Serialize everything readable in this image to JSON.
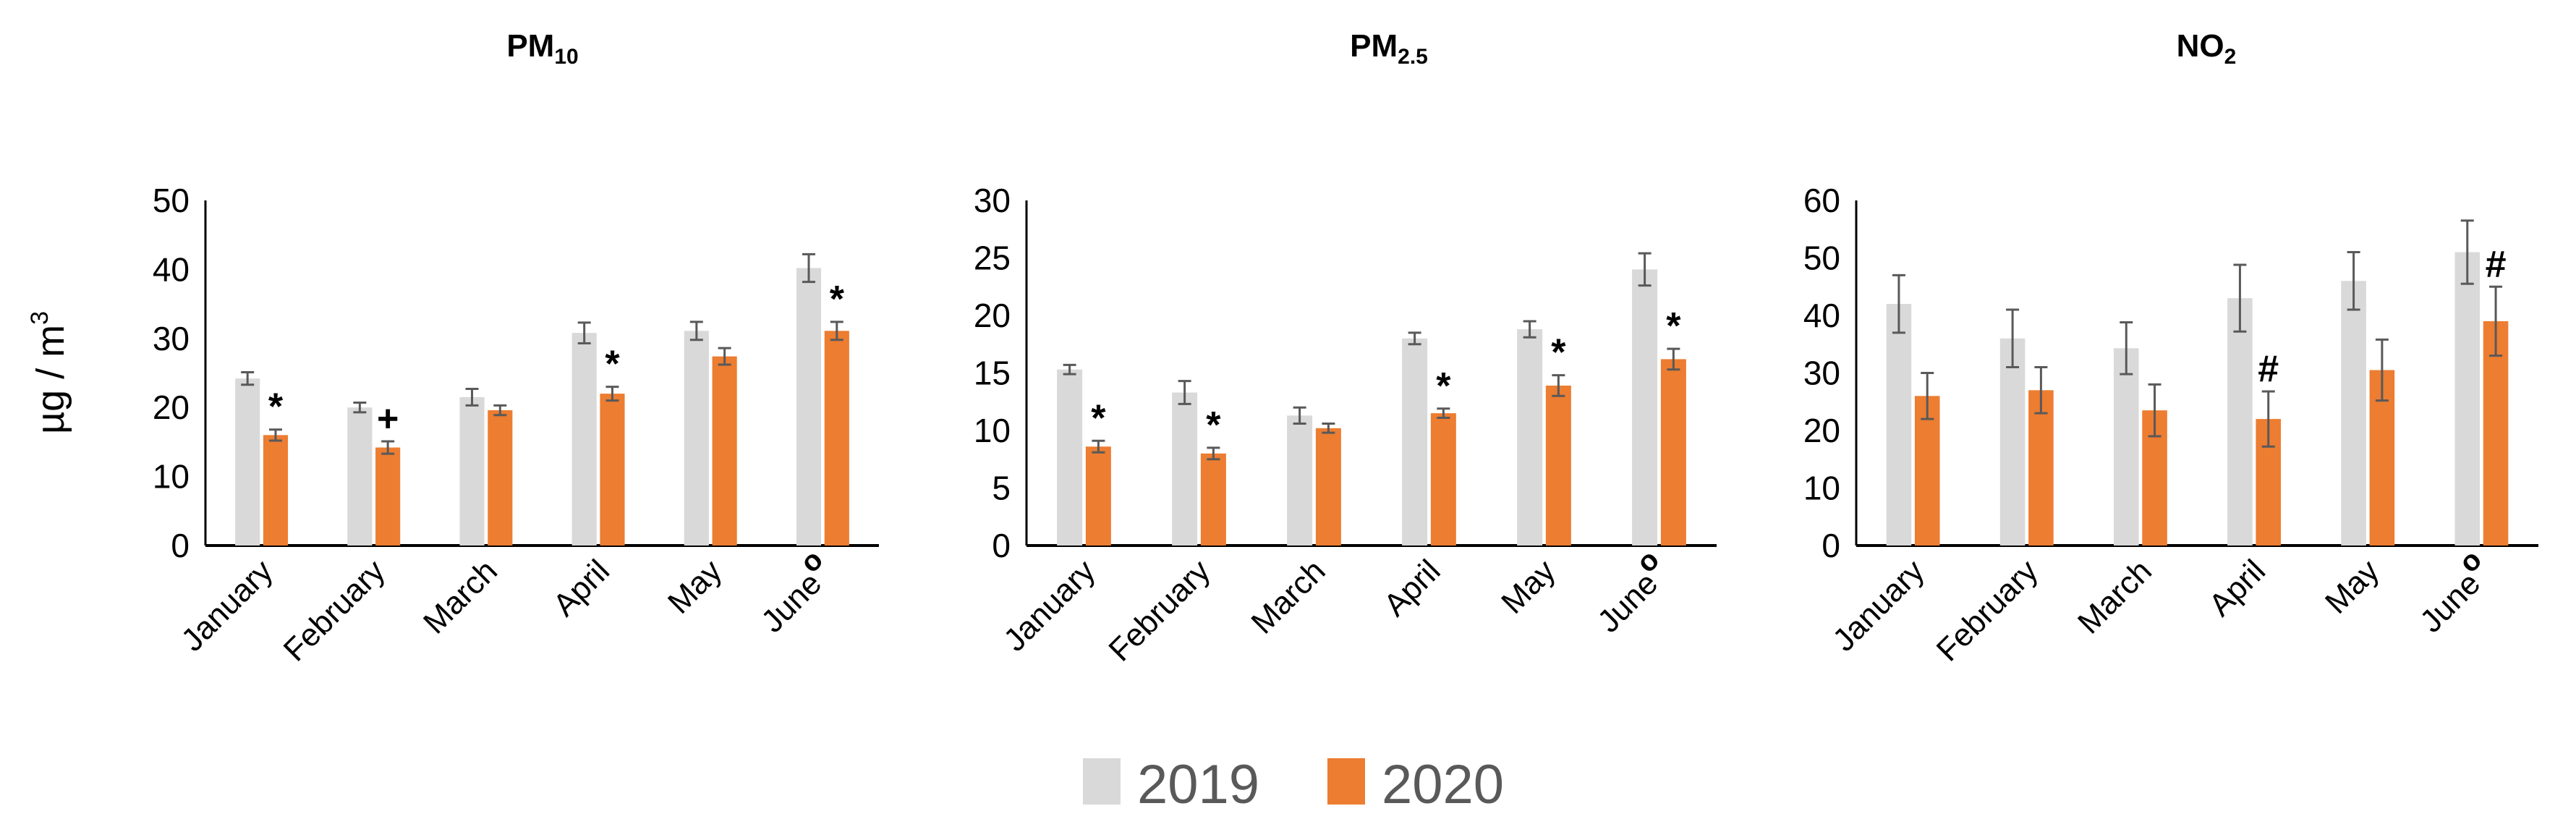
{
  "colors": {
    "2019": "#d9d9d9",
    "2020": "#ed7d31",
    "error_bar": "#595959",
    "axis": "#000000"
  },
  "legend": {
    "position": "bottom",
    "items": [
      "2019",
      "2020"
    ]
  },
  "y_axis_label": {
    "main": "µg / m",
    "sup": "3"
  },
  "chart_data": [
    {
      "type": "bar",
      "title": "PM",
      "title_sub": "10",
      "categories": [
        "January",
        "February",
        "March",
        "April",
        "May",
        "June"
      ],
      "category_marks": [
        "",
        "",
        "",
        "",
        "",
        "o"
      ],
      "ylim": [
        0,
        50
      ],
      "yticks": [
        0,
        10,
        20,
        30,
        40,
        50
      ],
      "grid": false,
      "series": [
        {
          "name": "2019",
          "values": [
            24.2,
            20.0,
            21.5,
            30.8,
            31.1,
            40.2
          ],
          "errors": [
            0.9,
            0.7,
            1.2,
            1.5,
            1.3,
            2.0
          ],
          "annotations": [
            "",
            "",
            "",
            "",
            "",
            ""
          ]
        },
        {
          "name": "2020",
          "values": [
            16.0,
            14.2,
            19.6,
            22.0,
            27.4,
            31.1
          ],
          "errors": [
            0.8,
            0.9,
            0.7,
            1.0,
            1.2,
            1.3
          ],
          "annotations": [
            "*",
            "+",
            "",
            "*",
            "",
            "*"
          ]
        }
      ]
    },
    {
      "type": "bar",
      "title": "PM",
      "title_sub": "2.5",
      "categories": [
        "January",
        "February",
        "March",
        "April",
        "May",
        "June"
      ],
      "category_marks": [
        "",
        "",
        "",
        "",
        "",
        "o"
      ],
      "ylim": [
        0,
        30
      ],
      "yticks": [
        0,
        5,
        10,
        15,
        20,
        25,
        30
      ],
      "grid": false,
      "series": [
        {
          "name": "2019",
          "values": [
            15.3,
            13.3,
            11.3,
            18.0,
            18.8,
            24.0
          ],
          "errors": [
            0.4,
            1.0,
            0.7,
            0.5,
            0.7,
            1.4
          ],
          "annotations": [
            "",
            "",
            "",
            "",
            "",
            ""
          ]
        },
        {
          "name": "2020",
          "values": [
            8.6,
            8.0,
            10.2,
            11.5,
            13.9,
            16.2
          ],
          "errors": [
            0.5,
            0.5,
            0.4,
            0.4,
            0.9,
            0.9
          ],
          "annotations": [
            "*",
            "*",
            "",
            "*",
            "*",
            "*"
          ]
        }
      ]
    },
    {
      "type": "bar",
      "title": "NO",
      "title_sub": "2",
      "categories": [
        "January",
        "February",
        "March",
        "April",
        "May",
        "June"
      ],
      "category_marks": [
        "",
        "",
        "",
        "",
        "",
        "o"
      ],
      "ylim": [
        0,
        60
      ],
      "yticks": [
        0,
        10,
        20,
        30,
        40,
        50,
        60
      ],
      "grid": false,
      "series": [
        {
          "name": "2019",
          "values": [
            42.0,
            36.0,
            34.3,
            43.0,
            46.0,
            51.0
          ],
          "errors": [
            5.0,
            5.0,
            4.5,
            5.8,
            5.0,
            5.5
          ],
          "annotations": [
            "",
            "",
            "",
            "",
            "",
            ""
          ]
        },
        {
          "name": "2020",
          "values": [
            26.0,
            27.0,
            23.5,
            22.0,
            30.5,
            39.0
          ],
          "errors": [
            4.0,
            4.0,
            4.5,
            4.8,
            5.3,
            6.0
          ],
          "annotations": [
            "",
            "",
            "",
            "#",
            "",
            "#"
          ]
        }
      ]
    }
  ]
}
